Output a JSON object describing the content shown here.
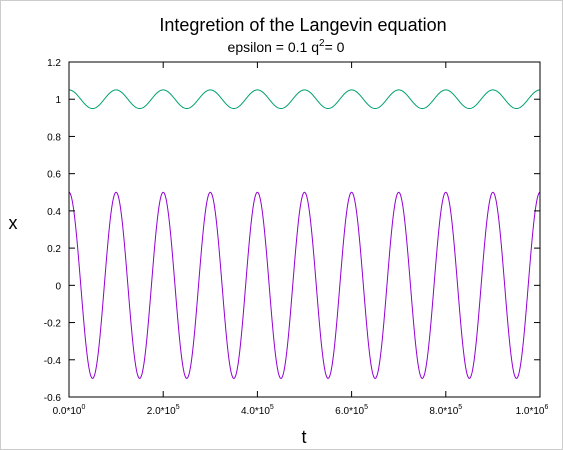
{
  "chart_data": {
    "type": "line",
    "title": "Integretion of the Langevin equation",
    "subtitle": {
      "prefix": "epsilon = 0.1 q",
      "superscript": "2",
      "suffix": "= 0"
    },
    "xlabel": "t",
    "ylabel": "x",
    "xlim": [
      0,
      1000000
    ],
    "ylim": [
      -0.6,
      1.2
    ],
    "yticks": [
      -0.6,
      -0.4,
      -0.2,
      0,
      0.2,
      0.4,
      0.6,
      0.8,
      1,
      1.2
    ],
    "ytick_labels": [
      "-0.6",
      "-0.4",
      "-0.2",
      "0",
      "0.2",
      "0.4",
      "0.6",
      "0.8",
      "1",
      "1.2"
    ],
    "xticks": [
      {
        "value": 0,
        "mantissa": "0.0*10",
        "exponent": "0"
      },
      {
        "value": 200000,
        "mantissa": "2.0*10",
        "exponent": "5"
      },
      {
        "value": 400000,
        "mantissa": "4.0*10",
        "exponent": "5"
      },
      {
        "value": 600000,
        "mantissa": "6.0*10",
        "exponent": "5"
      },
      {
        "value": 800000,
        "mantissa": "8.0*10",
        "exponent": "5"
      },
      {
        "value": 1000000,
        "mantissa": "1.0*10",
        "exponent": "6"
      }
    ],
    "grid": false,
    "series": [
      {
        "color": "#00a070",
        "function": "cos",
        "mean": 1.0,
        "amplitude": 0.05,
        "period": 100000,
        "phase": 0
      },
      {
        "color": "#9400d3",
        "function": "cos",
        "mean": 0.0,
        "amplitude": 0.5,
        "period": 100000,
        "phase": 0
      }
    ]
  }
}
